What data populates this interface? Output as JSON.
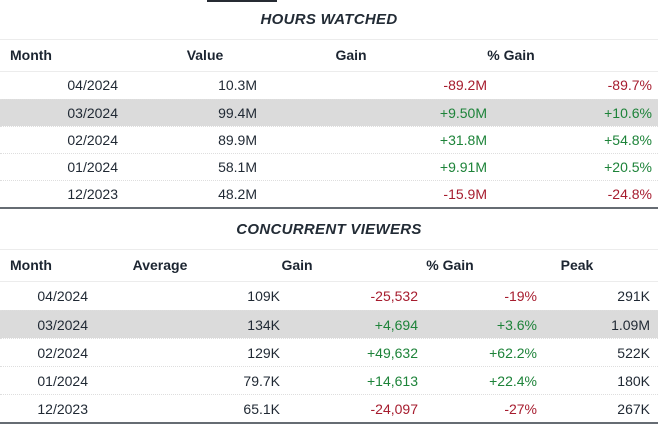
{
  "colors": {
    "positive": "#1d8339",
    "negative": "#a61c2e",
    "row_highlight": "#dbdbdb",
    "text": "#1f2833"
  },
  "tables": [
    {
      "title": "HOURS WATCHED",
      "columns": [
        "Month",
        "Value",
        "Gain",
        "% Gain"
      ],
      "rows": [
        {
          "hl": "",
          "cells": [
            {
              "t": "04/2024",
              "tone": ""
            },
            {
              "t": "10.3M",
              "tone": ""
            },
            {
              "t": "-89.2M",
              "tone": "neg"
            },
            {
              "t": "-89.7%",
              "tone": "neg"
            }
          ]
        },
        {
          "hl": "on",
          "cells": [
            {
              "t": "03/2024",
              "tone": ""
            },
            {
              "t": "99.4M",
              "tone": ""
            },
            {
              "t": "+9.50M",
              "tone": "pos"
            },
            {
              "t": "+10.6%",
              "tone": "pos"
            }
          ]
        },
        {
          "hl": "",
          "cells": [
            {
              "t": "02/2024",
              "tone": ""
            },
            {
              "t": "89.9M",
              "tone": ""
            },
            {
              "t": "+31.8M",
              "tone": "pos"
            },
            {
              "t": "+54.8%",
              "tone": "pos"
            }
          ]
        },
        {
          "hl": "",
          "cells": [
            {
              "t": "01/2024",
              "tone": ""
            },
            {
              "t": "58.1M",
              "tone": ""
            },
            {
              "t": "+9.91M",
              "tone": "pos"
            },
            {
              "t": "+20.5%",
              "tone": "pos"
            }
          ]
        },
        {
          "hl": "",
          "cells": [
            {
              "t": "12/2023",
              "tone": ""
            },
            {
              "t": "48.2M",
              "tone": ""
            },
            {
              "t": "-15.9M",
              "tone": "neg"
            },
            {
              "t": "-24.8%",
              "tone": "neg"
            }
          ]
        }
      ]
    },
    {
      "title": "CONCURRENT VIEWERS",
      "columns": [
        "Month",
        "Average",
        "Gain",
        "% Gain",
        "Peak"
      ],
      "rows": [
        {
          "hl": "",
          "cells": [
            {
              "t": "04/2024",
              "tone": ""
            },
            {
              "t": "109K",
              "tone": ""
            },
            {
              "t": "-25,532",
              "tone": "neg"
            },
            {
              "t": "-19%",
              "tone": "neg"
            },
            {
              "t": "291K",
              "tone": ""
            }
          ]
        },
        {
          "hl": "on",
          "cells": [
            {
              "t": "03/2024",
              "tone": ""
            },
            {
              "t": "134K",
              "tone": ""
            },
            {
              "t": "+4,694",
              "tone": "pos"
            },
            {
              "t": "+3.6%",
              "tone": "pos"
            },
            {
              "t": "1.09M",
              "tone": ""
            }
          ]
        },
        {
          "hl": "",
          "cells": [
            {
              "t": "02/2024",
              "tone": ""
            },
            {
              "t": "129K",
              "tone": ""
            },
            {
              "t": "+49,632",
              "tone": "pos"
            },
            {
              "t": "+62.2%",
              "tone": "pos"
            },
            {
              "t": "522K",
              "tone": ""
            }
          ]
        },
        {
          "hl": "",
          "cells": [
            {
              "t": "01/2024",
              "tone": ""
            },
            {
              "t": "79.7K",
              "tone": ""
            },
            {
              "t": "+14,613",
              "tone": "pos"
            },
            {
              "t": "+22.4%",
              "tone": "pos"
            },
            {
              "t": "180K",
              "tone": ""
            }
          ]
        },
        {
          "hl": "",
          "cells": [
            {
              "t": "12/2023",
              "tone": ""
            },
            {
              "t": "65.1K",
              "tone": ""
            },
            {
              "t": "-24,097",
              "tone": "neg"
            },
            {
              "t": "-27%",
              "tone": "neg"
            },
            {
              "t": "267K",
              "tone": ""
            }
          ]
        }
      ]
    }
  ]
}
